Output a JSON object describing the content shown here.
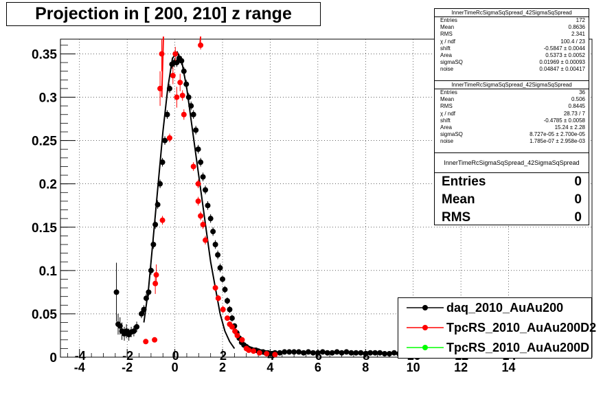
{
  "chart_data": {
    "type": "scatter",
    "title": "Projection in [ 200, 210] z range",
    "xlabel": "",
    "ylabel": "",
    "xlim": [
      -4.8,
      17.5
    ],
    "ylim": [
      0,
      0.367
    ],
    "grid": true,
    "legend_position": "bottom-right",
    "x_ticks": [
      "-4",
      "-2",
      "0",
      "2",
      "4",
      "6",
      "8",
      "10",
      "12",
      "14"
    ],
    "y_ticks": [
      "0",
      "0.05",
      "0.1",
      "0.15",
      "0.2",
      "0.25",
      "0.3",
      "0.35"
    ],
    "x_ticks_overlap": [
      "-4",
      "-2",
      "0",
      "2",
      "4",
      "6",
      "8",
      "10",
      "12",
      "14"
    ],
    "series": [
      {
        "name": "daq_2010_AuAu200",
        "color": "#000000",
        "marker": "circle",
        "points": [
          [
            -2.45,
            0.075,
            0.034
          ],
          [
            -2.38,
            0.038,
            0.012
          ],
          [
            -2.3,
            0.036,
            0.01
          ],
          [
            -2.22,
            0.03,
            0.01
          ],
          [
            -2.12,
            0.027,
            0.008
          ],
          [
            -2.03,
            0.03,
            0.008
          ],
          [
            -1.93,
            0.026,
            0.007
          ],
          [
            -1.83,
            0.029,
            0.006
          ],
          [
            -1.72,
            0.03,
            0.006
          ],
          [
            -1.6,
            0.035,
            0.006
          ],
          [
            -1.4,
            0.05,
            0.005
          ],
          [
            -1.3,
            0.055,
            0.005
          ],
          [
            -1.2,
            0.068,
            0.005
          ],
          [
            -1.1,
            0.075,
            0.005
          ],
          [
            -1.0,
            0.1,
            0.005
          ],
          [
            -0.9,
            0.13,
            0.005
          ],
          [
            -0.82,
            0.153,
            0.005
          ],
          [
            -0.72,
            0.176,
            0.005
          ],
          [
            -0.62,
            0.2,
            0.005
          ],
          [
            -0.52,
            0.225,
            0.005
          ],
          [
            -0.42,
            0.25,
            0.005
          ],
          [
            -0.32,
            0.28,
            0.005
          ],
          [
            -0.22,
            0.31,
            0.005
          ],
          [
            -0.12,
            0.338,
            0.005
          ],
          [
            -0.02,
            0.34,
            0.005
          ],
          [
            0.08,
            0.34,
            0.005
          ],
          [
            0.18,
            0.345,
            0.005
          ],
          [
            0.28,
            0.342,
            0.005
          ],
          [
            0.38,
            0.33,
            0.005
          ],
          [
            0.48,
            0.315,
            0.005
          ],
          [
            0.58,
            0.3,
            0.005
          ],
          [
            0.68,
            0.29,
            0.005
          ],
          [
            0.78,
            0.28,
            0.005
          ],
          [
            0.88,
            0.262,
            0.005
          ],
          [
            0.98,
            0.24,
            0.005
          ],
          [
            1.08,
            0.225,
            0.005
          ],
          [
            1.18,
            0.208,
            0.005
          ],
          [
            1.28,
            0.193,
            0.005
          ],
          [
            1.38,
            0.175,
            0.005
          ],
          [
            1.5,
            0.16,
            0.005
          ],
          [
            1.6,
            0.145,
            0.005
          ],
          [
            1.7,
            0.13,
            0.005
          ],
          [
            1.8,
            0.118,
            0.005
          ],
          [
            1.9,
            0.103,
            0.005
          ],
          [
            2.0,
            0.09,
            0.004
          ],
          [
            2.1,
            0.078,
            0.004
          ],
          [
            2.2,
            0.065,
            0.004
          ],
          [
            2.3,
            0.055,
            0.004
          ],
          [
            2.4,
            0.045,
            0.004
          ],
          [
            2.5,
            0.036,
            0.003
          ],
          [
            2.6,
            0.028,
            0.003
          ],
          [
            2.7,
            0.022,
            0.003
          ],
          [
            2.8,
            0.017,
            0.003
          ],
          [
            2.9,
            0.014,
            0.002
          ],
          [
            3.0,
            0.012,
            0.002
          ],
          [
            3.1,
            0.01,
            0.002
          ],
          [
            3.2,
            0.009,
            0.002
          ],
          [
            3.3,
            0.008,
            0.002
          ],
          [
            3.4,
            0.008,
            0.002
          ],
          [
            3.5,
            0.007,
            0.002
          ],
          [
            3.6,
            0.006,
            0.001
          ],
          [
            3.7,
            0.006,
            0.001
          ],
          [
            3.8,
            0.005,
            0.001
          ],
          [
            3.9,
            0.005,
            0.001
          ],
          [
            4.0,
            0.004,
            0.001
          ],
          [
            4.1,
            0.004,
            0.001
          ],
          [
            4.2,
            0.005,
            0.001
          ],
          [
            4.4,
            0.005,
            0.001
          ],
          [
            4.6,
            0.006,
            0.001
          ],
          [
            4.8,
            0.006,
            0.001
          ],
          [
            5.0,
            0.006,
            0.001
          ],
          [
            5.2,
            0.006,
            0.001
          ],
          [
            5.4,
            0.005,
            0.001
          ],
          [
            5.6,
            0.006,
            0.001
          ],
          [
            5.8,
            0.005,
            0.001
          ],
          [
            6.0,
            0.005,
            0.001
          ],
          [
            6.2,
            0.006,
            0.001
          ],
          [
            6.4,
            0.005,
            0.001
          ],
          [
            6.6,
            0.005,
            0.001
          ],
          [
            6.8,
            0.006,
            0.001
          ],
          [
            7.0,
            0.005,
            0.001
          ],
          [
            7.2,
            0.006,
            0.001
          ],
          [
            7.4,
            0.005,
            0.001
          ],
          [
            7.6,
            0.005,
            0.001
          ],
          [
            7.8,
            0.005,
            0.001
          ],
          [
            8.0,
            0.004,
            0.001
          ],
          [
            8.2,
            0.005,
            0.001
          ],
          [
            8.4,
            0.005,
            0.001
          ],
          [
            8.6,
            0.005,
            0.001
          ],
          [
            8.8,
            0.004,
            0.001
          ],
          [
            9.0,
            0.004,
            0.001
          ],
          [
            9.2,
            0.005,
            0.001
          ],
          [
            9.4,
            0.004,
            0.001
          ],
          [
            9.6,
            0.005,
            0.001
          ],
          [
            9.8,
            0.004,
            0.001
          ]
        ]
      },
      {
        "name": "TpcRS_2010_AuAu200D2",
        "color": "#ff0000",
        "marker": "circle",
        "points": [
          [
            -1.22,
            0.018,
            0.003
          ],
          [
            -0.85,
            0.02,
            0.003
          ],
          [
            -0.82,
            0.085,
            0.012
          ],
          [
            -0.78,
            0.095,
            0.012
          ],
          [
            -0.52,
            0.158,
            0.005
          ],
          [
            -0.62,
            0.31,
            0.02
          ],
          [
            -0.55,
            0.35,
            0.02
          ],
          [
            -0.22,
            0.253,
            0.005
          ],
          [
            -0.08,
            0.325,
            0.01
          ],
          [
            0.02,
            0.35,
            0.008
          ],
          [
            0.08,
            0.3,
            0.012
          ],
          [
            0.22,
            0.317,
            0.01
          ],
          [
            0.32,
            0.302,
            0.006
          ],
          [
            0.38,
            0.28,
            0.006
          ],
          [
            0.78,
            0.22,
            0.005
          ],
          [
            0.98,
            0.2,
            0.005
          ],
          [
            1.08,
            0.36,
            0.005
          ],
          [
            0.98,
            0.18,
            0.005
          ],
          [
            1.08,
            0.163,
            0.005
          ],
          [
            1.18,
            0.153,
            0.005
          ],
          [
            1.28,
            0.135,
            0.005
          ],
          [
            1.7,
            0.08,
            0.004
          ],
          [
            1.82,
            0.068,
            0.004
          ],
          [
            2.02,
            0.055,
            0.004
          ],
          [
            2.2,
            0.045,
            0.003
          ],
          [
            2.3,
            0.038,
            0.003
          ],
          [
            2.4,
            0.035,
            0.003
          ],
          [
            2.52,
            0.03,
            0.003
          ],
          [
            2.62,
            0.025,
            0.003
          ],
          [
            2.82,
            0.02,
            0.002
          ],
          [
            3.0,
            0.01,
            0.002
          ],
          [
            3.1,
            0.008,
            0.002
          ],
          [
            3.3,
            0.007,
            0.001
          ],
          [
            3.55,
            0.005,
            0.001
          ],
          [
            3.85,
            0.004,
            0.001
          ],
          [
            4.2,
            0.003,
            0.001
          ]
        ]
      },
      {
        "name": "TpcRS_2010_AuAu200D",
        "color": "#00ff00",
        "marker": "circle",
        "points": []
      }
    ],
    "fit_curve": {
      "color": "#000000",
      "x": [
        -1.3,
        -1.1,
        -0.9,
        -0.7,
        -0.5,
        -0.3,
        -0.1,
        0.1,
        0.3,
        0.5,
        0.7,
        0.9,
        1.1,
        1.3,
        1.5,
        1.7,
        1.9,
        2.1,
        2.3,
        2.5
      ],
      "y": [
        0.04,
        0.08,
        0.14,
        0.2,
        0.26,
        0.31,
        0.345,
        0.352,
        0.34,
        0.31,
        0.27,
        0.23,
        0.19,
        0.15,
        0.11,
        0.08,
        0.05,
        0.03,
        0.018,
        0.01
      ]
    },
    "red_fit_segments": [
      {
        "x": [
          -0.55,
          -0.48
        ],
        "y": [
          0.3,
          0.37
        ]
      },
      {
        "x": [
          1.05,
          1.08
        ],
        "y": [
          0.36,
          0.37
        ]
      }
    ]
  },
  "stats_boxes": [
    {
      "header": "InnerTimeRcSigmaSqSpread_42SigmaSqSpread",
      "rows": [
        {
          "label": "Entries",
          "value": "172"
        },
        {
          "label": "Mean",
          "value": "0.8636"
        },
        {
          "label": "RMS",
          "value": "2.341"
        },
        {
          "label": "χ  / ndf",
          "value": "100.4 / 23"
        },
        {
          "label": "shift",
          "value": "-0.5847 ± 0.0044"
        },
        {
          "label": "Area",
          "value": "0.5373 ± 0.0052"
        },
        {
          "label": "sigmaSQ",
          "value": "0.01969 ± 0.00093"
        },
        {
          "label": "noise",
          "value": "0.04847 ± 0.00417"
        }
      ]
    },
    {
      "header": "InnerTimeRcSigmaSqSpread_42SigmaSqSpread",
      "rows": [
        {
          "label": "Entries",
          "value": "36"
        },
        {
          "label": "Mean",
          "value": "0.506"
        },
        {
          "label": "RMS",
          "value": "0.8445"
        },
        {
          "label": "χ  / ndf",
          "value": "28.73 / 7"
        },
        {
          "label": "shift",
          "value": "-0.4785 ± 0.0058"
        },
        {
          "label": "Area",
          "value": "15.24 ± 2.28"
        },
        {
          "label": "sigmaSQ",
          "value": "8.727e-05 ± 2.700e-05"
        },
        {
          "label": "noise",
          "value": "1.785e-07 ± 2.958e-03"
        }
      ]
    },
    {
      "header": "InnerTimeRcSigmaSqSpread_42SigmaSqSpread",
      "rows": [
        {
          "label": "Entries",
          "value": "0"
        },
        {
          "label": "Mean",
          "value": "0"
        },
        {
          "label": "RMS",
          "value": "0"
        }
      ]
    }
  ]
}
